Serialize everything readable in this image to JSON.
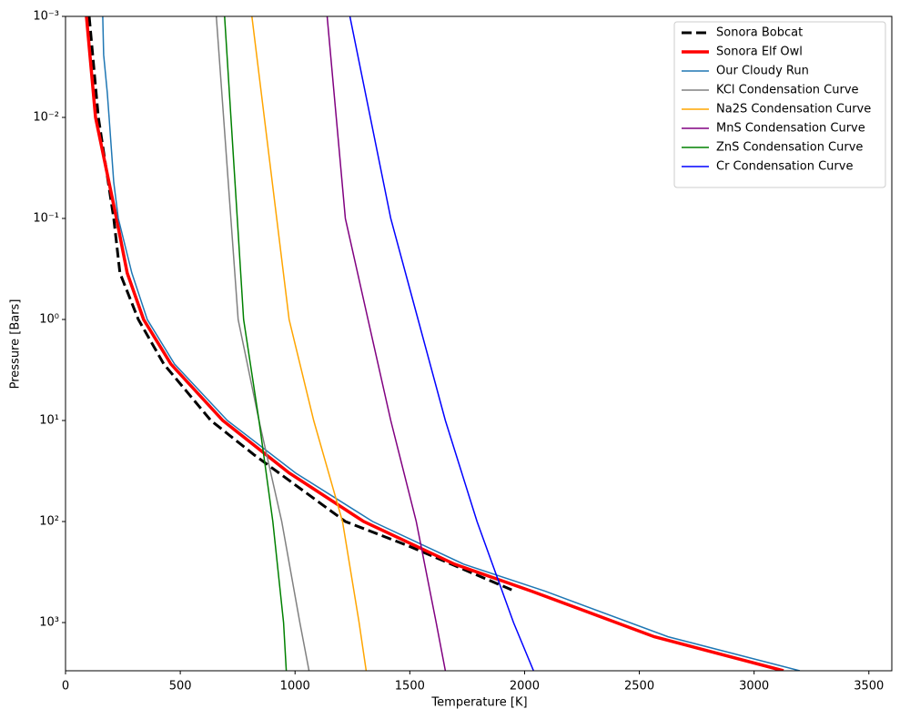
{
  "chart_data": {
    "type": "line",
    "xlabel": "Temperature [K]",
    "ylabel": "Pressure [Bars]",
    "xlim": [
      0,
      3600
    ],
    "xticks": [
      0,
      500,
      1000,
      1500,
      2000,
      2500,
      3000,
      3500
    ],
    "ylim": [
      0.001,
      3000
    ],
    "ylog": true,
    "yinverted": true,
    "yticks": [
      {
        "value": 0.001,
        "label": "10⁻³"
      },
      {
        "value": 0.01,
        "label": "10⁻²"
      },
      {
        "value": 0.1,
        "label": "10⁻¹"
      },
      {
        "value": 1,
        "label": "10⁰"
      },
      {
        "value": 10,
        "label": "10¹"
      },
      {
        "value": 100,
        "label": "10²"
      },
      {
        "value": 1000,
        "label": "10³"
      }
    ],
    "legend": "upper right",
    "series": [
      {
        "name": "Sonora Bobcat",
        "color": "#000000",
        "linestyle": "dashed",
        "linewidth": 3,
        "x": [
          103,
          143,
          210,
          237,
          317,
          428,
          633,
          823,
          1219,
          1496,
          1944
        ],
        "values": [
          0.001,
          0.01,
          0.1,
          0.347,
          1,
          2.76,
          10,
          22,
          100,
          175,
          475
        ]
      },
      {
        "name": "Sonora Elf Owl",
        "color": "#ff0000",
        "linestyle": "solid",
        "linewidth": 3.5,
        "x": [
          91,
          131,
          222,
          269,
          340,
          459,
          685,
          974,
          1299,
          1694,
          2031,
          2565,
          3128
        ],
        "values": [
          0.001,
          0.01,
          0.1,
          0.347,
          1,
          2.76,
          10,
          33,
          100,
          264,
          490,
          1380,
          3000
        ]
      },
      {
        "name": "Our Cloudy Run",
        "color": "#1f77b4",
        "linestyle": "solid",
        "linewidth": 1.5,
        "x": [
          162,
          166,
          182,
          190,
          210,
          230,
          289,
          356,
          475,
          705,
          1002,
          1338,
          1734,
          2090,
          2625,
          3199
        ],
        "values": [
          0.001,
          0.0024,
          0.0057,
          0.01,
          0.044,
          0.1,
          0.347,
          1,
          2.76,
          10,
          33,
          100,
          264,
          490,
          1380,
          3000
        ]
      },
      {
        "name": "KCl Condensation Curve",
        "color": "#808080",
        "linestyle": "solid",
        "linewidth": 1.5,
        "x": [
          657,
          752,
          843,
          942,
          1021,
          1061
        ],
        "values": [
          0.001,
          1,
          10,
          100,
          1000,
          3000
        ]
      },
      {
        "name": "Na2S Condensation Curve",
        "color": "#ffa500",
        "linestyle": "solid",
        "linewidth": 1.5,
        "x": [
          812,
          974,
          1081,
          1207,
          1279,
          1310
        ],
        "values": [
          0.001,
          1,
          10,
          100,
          1000,
          3000
        ]
      },
      {
        "name": "MnS Condensation Curve",
        "color": "#800080",
        "linestyle": "solid",
        "linewidth": 1.5,
        "x": [
          1140,
          1219,
          1318,
          1417,
          1528,
          1615,
          1655
        ],
        "values": [
          0.001,
          0.1,
          1,
          10,
          100,
          1000,
          3000
        ]
      },
      {
        "name": "ZnS Condensation Curve",
        "color": "#008000",
        "linestyle": "solid",
        "linewidth": 1.5,
        "x": [
          693,
          776,
          843,
          903,
          950,
          962
        ],
        "values": [
          0.001,
          1,
          10,
          100,
          1000,
          3000
        ]
      },
      {
        "name": "Cr Condensation Curve",
        "color": "#0000ff",
        "linestyle": "solid",
        "linewidth": 1.5,
        "x": [
          1239,
          1417,
          1536,
          1655,
          1793,
          1952,
          2039
        ],
        "values": [
          0.001,
          0.1,
          1,
          10,
          100,
          1000,
          3000
        ]
      }
    ]
  }
}
